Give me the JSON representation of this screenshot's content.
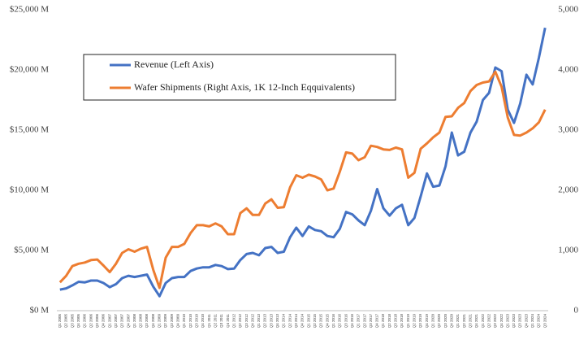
{
  "chart_data": {
    "type": "line",
    "legend": {
      "position": "top-left"
    },
    "categories": [
      "Q1 2005",
      "Q2 2005",
      "Q3 2005",
      "Q4 2005",
      "Q1 2006",
      "Q2 2006",
      "Q3 2006",
      "Q4 2006",
      "Q1 2007",
      "Q2 2007",
      "Q3 2007",
      "Q4 2007",
      "Q1 2008",
      "Q2 2008",
      "Q3 2008",
      "Q4 2008",
      "Q1 2009",
      "Q2 2009",
      "Q3 2009",
      "Q4 2009",
      "Q1 2010",
      "Q2 2010",
      "Q3 2010",
      "Q4 2010",
      "Q1 2011",
      "Q2 2011",
      "Q3 2011",
      "Q4 2011",
      "Q1 2012",
      "Q2 2012",
      "Q3 2012",
      "Q4 2012",
      "Q1 2013",
      "Q2 2013",
      "Q3 2013",
      "Q4 2013",
      "Q1 2014",
      "Q2 2014",
      "Q3 2014",
      "Q4 2014",
      "Q1 2015",
      "Q2 2015",
      "Q3 2015",
      "Q4 2015",
      "Q1 2016",
      "Q2 2016",
      "Q3 2016",
      "Q4 2016",
      "Q1 2017",
      "Q2 2017",
      "Q3 2017",
      "Q4 2017",
      "Q1 2018",
      "Q2 2018",
      "Q3 2018",
      "Q4 2018",
      "Q1 2019",
      "Q2 2019",
      "Q3 2019",
      "Q4 2019",
      "Q1 2020",
      "Q2 2020",
      "Q3 2020",
      "Q4 2020",
      "Q1 2021",
      "Q2 2021",
      "Q3 2021",
      "Q4 2021",
      "Q1 2022",
      "Q2 2022",
      "Q3 2022",
      "Q4 2022",
      "Q1 2023",
      "Q2 2023",
      "Q3 2023",
      "Q4 2023",
      "Q1 2024",
      "Q2 2024",
      "Q3 2024"
    ],
    "series": [
      {
        "name": "Revenue (Left Axis)",
        "color": "#4472c4",
        "values": [
          1750,
          1850,
          2100,
          2400,
          2350,
          2500,
          2500,
          2300,
          1950,
          2200,
          2700,
          2900,
          2800,
          2900,
          3000,
          2000,
          1200,
          2300,
          2700,
          2800,
          2800,
          3300,
          3500,
          3600,
          3600,
          3800,
          3700,
          3450,
          3500,
          4200,
          4700,
          4800,
          4600,
          5200,
          5300,
          4800,
          4900,
          6100,
          6900,
          6200,
          7000,
          6700,
          6600,
          6200,
          6100,
          6800,
          8200,
          8000,
          7500,
          7100,
          8300,
          10100,
          8500,
          7900,
          8500,
          8800,
          7100,
          7700,
          9500,
          11400,
          10300,
          10400,
          12000,
          14800,
          12900,
          13200,
          14800,
          15700,
          17500,
          18100,
          20200,
          19900,
          16700,
          15600,
          17200,
          19600,
          18800,
          21000,
          23500
        ]
      },
      {
        "name": "Wafer Shipments (Right Axis, 1K 12-Inch Eqquivalents)",
        "color": "#ed7d31",
        "axis": "y2",
        "values": [
          470,
          580,
          740,
          780,
          800,
          840,
          850,
          750,
          640,
          780,
          960,
          1020,
          980,
          1030,
          1060,
          680,
          380,
          880,
          1060,
          1060,
          1110,
          1290,
          1420,
          1420,
          1400,
          1450,
          1400,
          1270,
          1270,
          1620,
          1700,
          1590,
          1590,
          1780,
          1850,
          1710,
          1720,
          2050,
          2250,
          2210,
          2260,
          2230,
          2180,
          2000,
          2030,
          2310,
          2630,
          2610,
          2500,
          2550,
          2740,
          2720,
          2680,
          2670,
          2710,
          2680,
          2210,
          2290,
          2690,
          2780,
          2880,
          2960,
          3220,
          3230,
          3370,
          3450,
          3650,
          3750,
          3790,
          3810,
          3970,
          3720,
          3210,
          2920,
          2910,
          2960,
          3030,
          3130,
          3340
        ]
      }
    ],
    "ylim": [
      0,
      25000
    ],
    "yticks": [
      {
        "value": 0,
        "label": "$0 M"
      },
      {
        "value": 5000,
        "label": "$5,000 M"
      },
      {
        "value": 10000,
        "label": "$10,000 M"
      },
      {
        "value": 15000,
        "label": "$15,000 M"
      },
      {
        "value": 20000,
        "label": "$20,000 M"
      },
      {
        "value": 25000,
        "label": "$25,000 M"
      }
    ],
    "y2lim": [
      0,
      5000
    ],
    "y2ticks": [
      0,
      {
        "value": 1000,
        "label": "1,000"
      },
      {
        "value": 2000,
        "label": "2,000"
      },
      {
        "value": 3000,
        "label": "3,000"
      },
      {
        "value": 4000,
        "label": "4,000"
      },
      {
        "value": 5000,
        "label": "5,000"
      }
    ]
  }
}
